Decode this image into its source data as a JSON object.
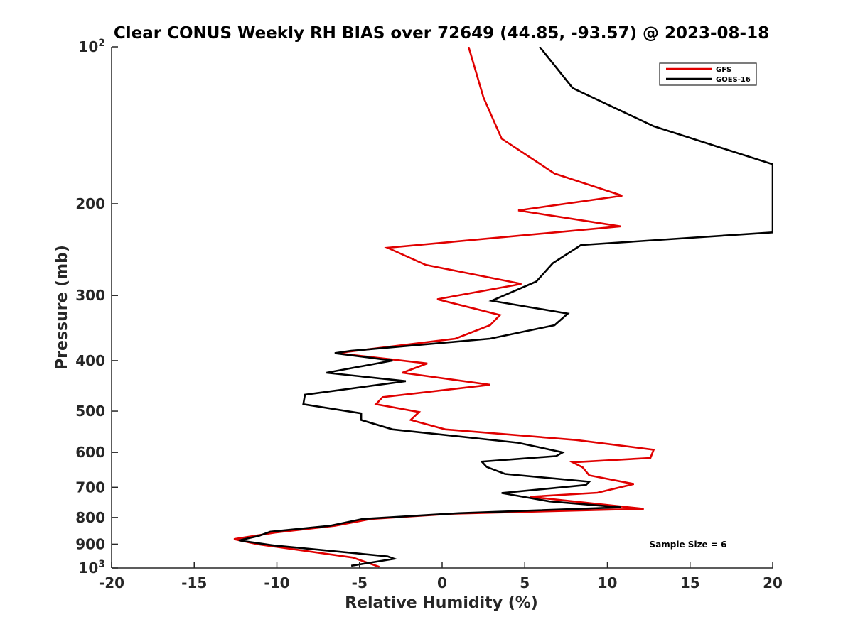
{
  "chart_data": {
    "type": "line",
    "title": "Clear CONUS Weekly RH BIAS over 72649 (44.85, -93.57) @ 2023-08-18",
    "xlabel": "Relative Humidity (%)",
    "ylabel": "Pressure (mb)",
    "xlim": [
      -20,
      20
    ],
    "ylim": [
      100,
      1000
    ],
    "y_scale": "log",
    "y_reversed": true,
    "x_ticks": [
      "-20",
      "-15",
      "-10",
      "-5",
      "0",
      "5",
      "10",
      "15",
      "20"
    ],
    "y_ticks": [
      {
        "value": 100,
        "label": "10",
        "sup": "2"
      },
      {
        "value": 200,
        "label": "200",
        "sup": ""
      },
      {
        "value": 300,
        "label": "300",
        "sup": ""
      },
      {
        "value": 400,
        "label": "400",
        "sup": ""
      },
      {
        "value": 500,
        "label": "500",
        "sup": ""
      },
      {
        "value": 600,
        "label": "600",
        "sup": ""
      },
      {
        "value": 700,
        "label": "700",
        "sup": ""
      },
      {
        "value": 800,
        "label": "800",
        "sup": ""
      },
      {
        "value": 900,
        "label": "900",
        "sup": ""
      },
      {
        "value": 1000,
        "label": "10",
        "sup": "3"
      }
    ],
    "grid": false,
    "legend_position": "top-right",
    "series": [
      {
        "name": "GFS",
        "color": "#e00000",
        "points": [
          [
            1.6,
            100
          ],
          [
            2.5,
            125
          ],
          [
            3.6,
            150
          ],
          [
            6.8,
            175
          ],
          [
            10.9,
            193
          ],
          [
            4.6,
            206
          ],
          [
            10.8,
            221
          ],
          [
            -3.3,
            243
          ],
          [
            -1.0,
            262
          ],
          [
            4.8,
            285
          ],
          [
            -0.3,
            305
          ],
          [
            3.5,
            327
          ],
          [
            2.9,
            342
          ],
          [
            0.8,
            363
          ],
          [
            -6.4,
            387
          ],
          [
            -0.9,
            405
          ],
          [
            -2.4,
            422
          ],
          [
            2.9,
            445
          ],
          [
            -3.6,
            470
          ],
          [
            -4.0,
            485
          ],
          [
            -1.4,
            502
          ],
          [
            -1.9,
            520
          ],
          [
            0.2,
            542
          ],
          [
            8.1,
            568
          ],
          [
            12.8,
            593
          ],
          [
            12.6,
            615
          ],
          [
            7.9,
            627
          ],
          [
            8.5,
            641
          ],
          [
            8.9,
            664
          ],
          [
            11.6,
            690
          ],
          [
            9.4,
            717
          ],
          [
            5.3,
            730
          ],
          [
            12.2,
            770
          ],
          [
            0.6,
            787
          ],
          [
            -4.3,
            805
          ],
          [
            -6.5,
            830
          ],
          [
            -10.1,
            855
          ],
          [
            -12.6,
            880
          ],
          [
            -11.2,
            900
          ],
          [
            -5.4,
            955
          ],
          [
            -3.8,
            995
          ]
        ]
      },
      {
        "name": "GOES-16",
        "color": "#000000",
        "points": [
          [
            5.9,
            100
          ],
          [
            7.9,
            120
          ],
          [
            12.8,
            142
          ],
          [
            20.0,
            168
          ],
          [
            20.0,
            227
          ],
          [
            8.4,
            240
          ],
          [
            6.7,
            260
          ],
          [
            5.7,
            282
          ],
          [
            3.0,
            307
          ],
          [
            7.6,
            325
          ],
          [
            6.8,
            342
          ],
          [
            2.9,
            363
          ],
          [
            -5.5,
            383
          ],
          [
            -6.5,
            387
          ],
          [
            -3.0,
            400
          ],
          [
            -7.0,
            422
          ],
          [
            -2.2,
            438
          ],
          [
            -8.3,
            465
          ],
          [
            -8.4,
            485
          ],
          [
            -4.9,
            505
          ],
          [
            -4.9,
            520
          ],
          [
            -3.0,
            542
          ],
          [
            4.6,
            575
          ],
          [
            7.3,
            600
          ],
          [
            6.9,
            610
          ],
          [
            2.4,
            625
          ],
          [
            2.7,
            640
          ],
          [
            3.8,
            660
          ],
          [
            8.9,
            683
          ],
          [
            8.7,
            693
          ],
          [
            3.6,
            718
          ],
          [
            6.5,
            745
          ],
          [
            10.8,
            765
          ],
          [
            1.0,
            785
          ],
          [
            -4.8,
            805
          ],
          [
            -6.8,
            830
          ],
          [
            -10.4,
            852
          ],
          [
            -11.1,
            868
          ],
          [
            -12.3,
            885
          ],
          [
            -10.2,
            905
          ],
          [
            -3.3,
            950
          ],
          [
            -2.9,
            960
          ],
          [
            -5.5,
            990
          ]
        ]
      }
    ],
    "annotations": [
      {
        "text": "Sample Size = 6",
        "x": 13.1,
        "y": 900
      }
    ]
  }
}
